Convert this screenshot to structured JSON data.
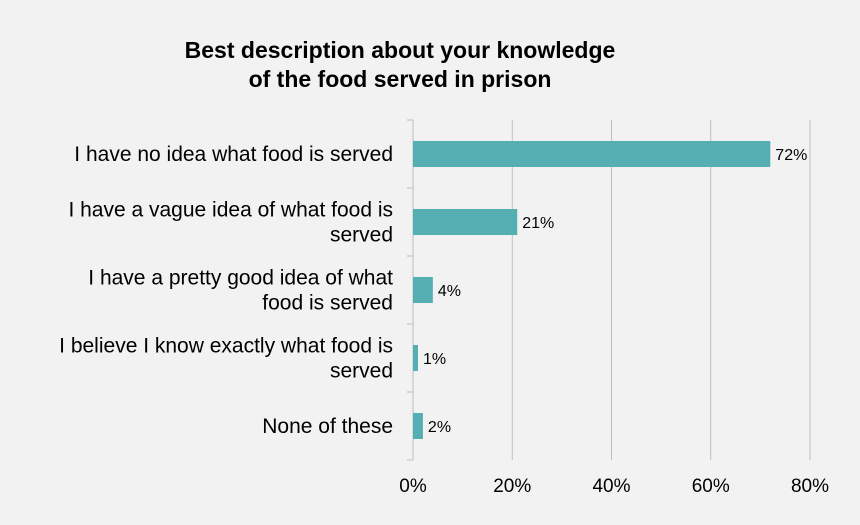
{
  "chart_data": {
    "type": "bar",
    "orientation": "horizontal",
    "title_lines": [
      "Best description about your knowledge",
      "of the food served in prison"
    ],
    "categories": [
      [
        "I have no idea what food is served"
      ],
      [
        "I have a vague idea of what food is",
        "served"
      ],
      [
        "I have a pretty good idea of what",
        "food is served"
      ],
      [
        "I believe I know exactly what food is",
        "served"
      ],
      [
        "None of these"
      ]
    ],
    "values": [
      72,
      21,
      4,
      1,
      2
    ],
    "data_labels": [
      "72%",
      "21%",
      "4%",
      "1%",
      "2%"
    ],
    "xlim": [
      0,
      80
    ],
    "x_ticks": [
      0,
      20,
      40,
      60,
      80
    ],
    "x_tick_labels": [
      "0%",
      "20%",
      "40%",
      "60%",
      "80%"
    ],
    "xlabel": "",
    "ylabel": "",
    "grid": "vertical",
    "legend": "none",
    "colors": {
      "bar": "#55aeb1",
      "grid": "#bfbfbf",
      "background": "#f2f2f2",
      "text": "#000000"
    }
  }
}
